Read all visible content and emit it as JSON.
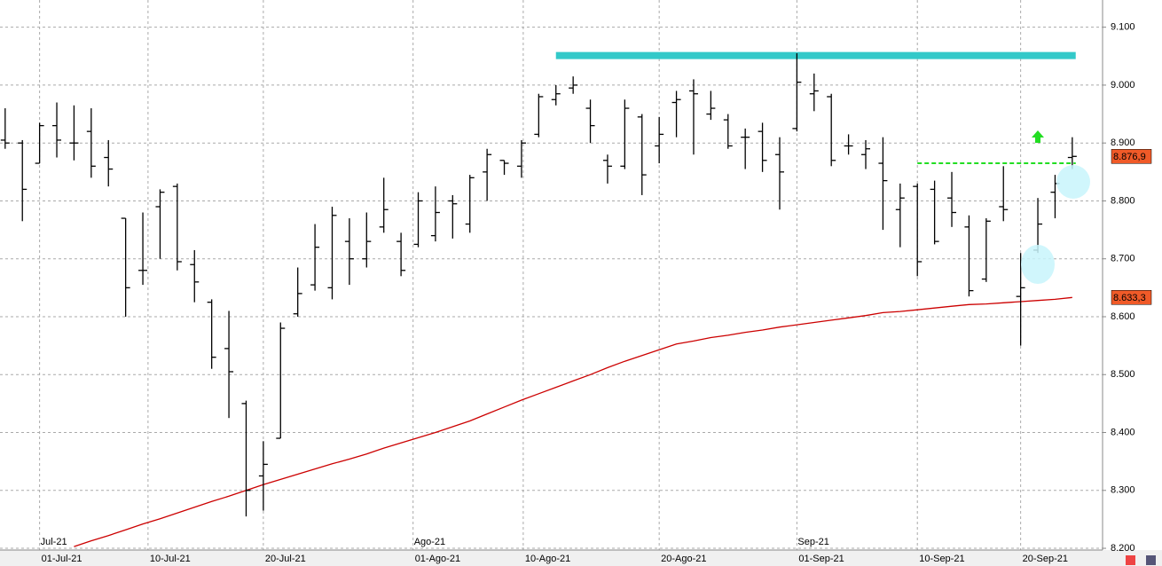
{
  "chart_data": {
    "type": "ohlc",
    "xlim": [
      -0.3,
      63.76
    ],
    "ylim": [
      8197,
      9147
    ],
    "grid": true,
    "yticks": [
      {
        "value": 8200,
        "label": "8.200"
      },
      {
        "value": 8300,
        "label": "8.300"
      },
      {
        "value": 8400,
        "label": "8.400"
      },
      {
        "value": 8500,
        "label": "8.500"
      },
      {
        "value": 8600,
        "label": "8.600"
      },
      {
        "value": 8700,
        "label": "8.700"
      },
      {
        "value": 8800,
        "label": "8.800"
      },
      {
        "value": 8900,
        "label": "8.900"
      },
      {
        "value": 9000,
        "label": "9.000"
      },
      {
        "value": 9100,
        "label": "9.100"
      }
    ],
    "xticks": [
      {
        "value": 2,
        "label": "01-Jul-21"
      },
      {
        "value": 8.3,
        "label": "10-Jul-21"
      },
      {
        "value": 15,
        "label": "20-Jul-21"
      },
      {
        "value": 23.7,
        "label": "01-Ago-21"
      },
      {
        "value": 30.1,
        "label": "10-Ago-21"
      },
      {
        "value": 38,
        "label": "20-Ago-21"
      },
      {
        "value": 46,
        "label": "01-Sep-21"
      },
      {
        "value": 53,
        "label": "10-Sep-21"
      },
      {
        "value": 59,
        "label": "20-Sep-21"
      }
    ],
    "month_ticks": [
      {
        "value": 2,
        "label": "Jul-21"
      },
      {
        "value": 23.7,
        "label": "Ago-21"
      },
      {
        "value": 46,
        "label": "Sep-21"
      }
    ],
    "ohlc": {
      "color": "#000000",
      "open": [
        8905,
        8900,
        8865,
        8930,
        8900,
        8920,
        8875,
        8770,
        8680,
        8790,
        8825,
        8690,
        8625,
        8545,
        8450,
        8325,
        8390,
        8605,
        8655,
        8650,
        8730,
        8700,
        8755,
        8730,
        8725,
        8740,
        8800,
        8760,
        8850,
        8870,
        8860,
        8915,
        8975,
        8995,
        8960,
        8870,
        8860,
        8945,
        8895,
        8970,
        8990,
        8950,
        8940,
        8910,
        8920,
        8880,
        8925,
        8985,
        8980,
        8895,
        8880,
        8865,
        8785,
        8825,
        8820,
        8805,
        8755,
        8665,
        8790,
        8635,
        8715,
        8815,
        8875
      ],
      "high": [
        8960,
        8905,
        8935,
        8970,
        8965,
        8960,
        8905,
        8770,
        8780,
        8820,
        8830,
        8715,
        8630,
        8610,
        8455,
        8385,
        8590,
        8685,
        8760,
        8790,
        8770,
        8780,
        8840,
        8745,
        8815,
        8825,
        8810,
        8845,
        8890,
        8870,
        8905,
        8985,
        9000,
        9015,
        8975,
        8880,
        8975,
        8950,
        8945,
        8990,
        9010,
        8990,
        8950,
        8925,
        8935,
        8910,
        9055,
        9020,
        8985,
        8915,
        8905,
        8910,
        8830,
        8830,
        8835,
        8850,
        8775,
        8770,
        8860,
        8710,
        8805,
        8845,
        8910
      ],
      "low": [
        8890,
        8765,
        8865,
        8875,
        8870,
        8840,
        8825,
        8600,
        8655,
        8700,
        8680,
        8625,
        8510,
        8425,
        8255,
        8265,
        8390,
        8600,
        8645,
        8630,
        8655,
        8685,
        8745,
        8670,
        8720,
        8730,
        8735,
        8745,
        8800,
        8845,
        8840,
        8910,
        8965,
        8985,
        8900,
        8830,
        8855,
        8810,
        8865,
        8910,
        8880,
        8940,
        8890,
        8855,
        8850,
        8785,
        8920,
        8955,
        8860,
        8880,
        8855,
        8750,
        8720,
        8670,
        8725,
        8755,
        8635,
        8660,
        8765,
        8550,
        8710,
        8770,
        8855
      ],
      "close": [
        8900,
        8820,
        8930,
        8905,
        8900,
        8860,
        8855,
        8650,
        8680,
        8815,
        8695,
        8660,
        8530,
        8505,
        8300,
        8345,
        8580,
        8640,
        8720,
        8775,
        8700,
        8730,
        8785,
        8680,
        8800,
        8780,
        8795,
        8840,
        8880,
        8865,
        8900,
        8980,
        8985,
        9000,
        8930,
        8860,
        8960,
        8845,
        8915,
        8975,
        8985,
        8960,
        8895,
        8910,
        8870,
        8850,
        9005,
        8990,
        8870,
        8895,
        8890,
        8835,
        8805,
        8695,
        8730,
        8780,
        8645,
        8765,
        8785,
        8650,
        8760,
        8830,
        8876.9
      ]
    },
    "ma": {
      "color": "#cc0000",
      "values": [
        null,
        null,
        null,
        null,
        8203,
        8213,
        8222,
        8232,
        8242,
        8251,
        8261,
        8271,
        8281,
        8290,
        8300,
        8310,
        8319,
        8328,
        8337,
        8346,
        8354,
        8363,
        8373,
        8382,
        8391,
        8400,
        8410,
        8420,
        8432,
        8444,
        8456,
        8467,
        8478,
        8489,
        8500,
        8512,
        8523,
        8533,
        8543,
        8553,
        8558,
        8564,
        8568,
        8573,
        8577,
        8582,
        8586,
        8590,
        8594,
        8598,
        8602,
        8607,
        8609,
        8612,
        8615,
        8618,
        8621,
        8622,
        8624,
        8626,
        8628,
        8630,
        8633.3
      ]
    },
    "hlines": [
      {
        "y": 9051,
        "x": [
          32,
          62.2
        ],
        "color": "#33c9c9",
        "width": 8,
        "dashed": false
      },
      {
        "y": 8865,
        "x": [
          53,
          62.2
        ],
        "color": "#22dd22",
        "width": 2,
        "dashed": true
      }
    ],
    "last_labels": [
      {
        "value": 8876.9,
        "label": "8.876,9",
        "color": "#f05a28"
      },
      {
        "value": 8633.3,
        "label": "8.633,3",
        "color": "#f05a28"
      }
    ]
  }
}
